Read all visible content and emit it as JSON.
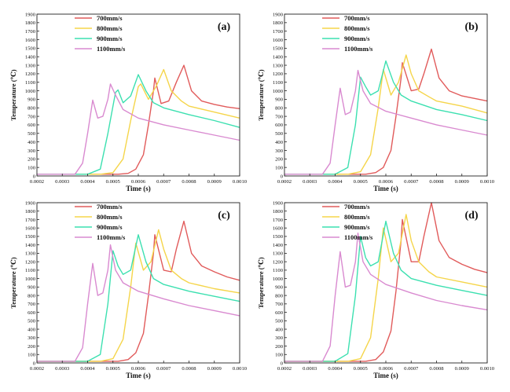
{
  "colors": {
    "700mm/s": "#e15b5b",
    "800mm/s": "#f5d54a",
    "900mm/s": "#3ce0b0",
    "1100mm/s": "#d98ad0",
    "axis": "#222222"
  },
  "chart_data": [
    {
      "type": "line",
      "panel_label": "(a)",
      "xlabel": "Time (s)",
      "ylabel": "Temperature (℃)",
      "xlim": [
        0.0002,
        0.001
      ],
      "ylim": [
        0,
        1900
      ],
      "x_ticks": [
        "0.0002",
        "0.0003",
        "0.0004",
        "0.0005",
        "0.0006",
        "0.0007",
        "0.0008",
        "0.0009",
        "0.0010"
      ],
      "y_ticks": [
        "0",
        "100",
        "200",
        "300",
        "400",
        "500",
        "600",
        "700",
        "800",
        "900",
        "1000",
        "1100",
        "1200",
        "1300",
        "1400",
        "1500",
        "1600",
        "1700",
        "1800",
        "1900"
      ],
      "legend_position": "top-center",
      "series": [
        {
          "name": "700mm/s",
          "x": [
            0.0002,
            0.00052,
            0.00056,
            0.00059,
            0.00062,
            0.00064,
            0.00066,
            0.000665,
            0.00069,
            0.00072,
            0.00075,
            0.00078,
            0.00081,
            0.00085,
            0.0009,
            0.00095,
            0.001
          ],
          "y": [
            20,
            20,
            30,
            80,
            250,
            600,
            1000,
            1150,
            850,
            880,
            1100,
            1300,
            1000,
            880,
            840,
            810,
            790
          ]
        },
        {
          "name": "800mm/s",
          "x": [
            0.0002,
            0.00045,
            0.0005,
            0.00054,
            0.00057,
            0.0006,
            0.00061,
            0.00064,
            0.00067,
            0.0007,
            0.00073,
            0.00077,
            0.0008,
            0.0009,
            0.001
          ],
          "y": [
            20,
            20,
            40,
            200,
            650,
            1050,
            1080,
            900,
            1050,
            1250,
            1000,
            880,
            820,
            750,
            680
          ]
        },
        {
          "name": "900mm/s",
          "x": [
            0.0002,
            0.0004,
            0.00045,
            0.00048,
            0.00051,
            0.00052,
            0.00054,
            0.00057,
            0.0006,
            0.00063,
            0.00066,
            0.0007,
            0.0008,
            0.0009,
            0.001
          ],
          "y": [
            20,
            20,
            80,
            500,
            980,
            1010,
            860,
            940,
            1190,
            1000,
            860,
            800,
            720,
            650,
            570
          ]
        },
        {
          "name": "1100mm/s",
          "x": [
            0.0002,
            0.00035,
            0.00038,
            0.0004,
            0.00042,
            0.00044,
            0.00046,
            0.00048,
            0.00049,
            0.00051,
            0.00054,
            0.0006,
            0.0007,
            0.0008,
            0.0009,
            0.001
          ],
          "y": [
            20,
            20,
            150,
            500,
            890,
            680,
            700,
            900,
            1080,
            950,
            780,
            680,
            600,
            540,
            480,
            420
          ]
        }
      ]
    },
    {
      "type": "line",
      "panel_label": "(b)",
      "xlabel": "Time (s)",
      "ylabel": "Temperature (℃)",
      "xlim": [
        0.0002,
        0.001
      ],
      "ylim": [
        0,
        1900
      ],
      "x_ticks": [
        "0.0002",
        "0.0003",
        "0.0004",
        "0.0005",
        "0.0006",
        "0.0007",
        "0.0008",
        "0.0009",
        "0.0010"
      ],
      "y_ticks": [
        "0",
        "100",
        "200",
        "300",
        "400",
        "500",
        "600",
        "700",
        "800",
        "900",
        "1000",
        "1100",
        "1200",
        "1300",
        "1400",
        "1500",
        "1600",
        "1700",
        "1800",
        "1900"
      ],
      "legend_position": "top-center",
      "series": [
        {
          "name": "700mm/s",
          "x": [
            0.0002,
            0.00052,
            0.00056,
            0.00059,
            0.00062,
            0.00064,
            0.00066,
            0.000665,
            0.0007,
            0.00073,
            0.00075,
            0.00078,
            0.00081,
            0.00085,
            0.0009,
            0.00095,
            0.001
          ],
          "y": [
            20,
            20,
            40,
            100,
            300,
            700,
            1150,
            1330,
            1000,
            1020,
            1200,
            1490,
            1150,
            1000,
            940,
            910,
            880
          ]
        },
        {
          "name": "800mm/s",
          "x": [
            0.0002,
            0.00045,
            0.0005,
            0.00054,
            0.00057,
            0.00059,
            0.00062,
            0.00065,
            0.00068,
            0.0007,
            0.00073,
            0.00077,
            0.0008,
            0.0009,
            0.001
          ],
          "y": [
            20,
            20,
            50,
            250,
            800,
            1250,
            950,
            1100,
            1420,
            1200,
            1000,
            930,
            880,
            820,
            740
          ]
        },
        {
          "name": "900mm/s",
          "x": [
            0.0002,
            0.0004,
            0.00045,
            0.00048,
            0.0005,
            0.00052,
            0.00054,
            0.00057,
            0.0006,
            0.00063,
            0.00066,
            0.0007,
            0.0008,
            0.0009,
            0.001
          ],
          "y": [
            20,
            20,
            100,
            600,
            1160,
            1050,
            950,
            1000,
            1350,
            1100,
            950,
            880,
            780,
            720,
            650
          ]
        },
        {
          "name": "1100mm/s",
          "x": [
            0.0002,
            0.00035,
            0.00038,
            0.0004,
            0.00042,
            0.00044,
            0.00046,
            0.00048,
            0.00049,
            0.00051,
            0.00054,
            0.0006,
            0.0007,
            0.0008,
            0.0009,
            0.001
          ],
          "y": [
            20,
            20,
            150,
            600,
            1030,
            720,
            750,
            1000,
            1240,
            1000,
            850,
            760,
            680,
            600,
            540,
            480
          ]
        }
      ]
    },
    {
      "type": "line",
      "panel_label": "(c)",
      "xlabel": "Time (s)",
      "ylabel": "Temperature (℃)",
      "xlim": [
        0.0002,
        0.001
      ],
      "ylim": [
        0,
        1900
      ],
      "x_ticks": [
        "0.0002",
        "0.0003",
        "0.0004",
        "0.0005",
        "0.0006",
        "0.0007",
        "0.0008",
        "0.0009",
        "0.0010"
      ],
      "y_ticks": [
        "0",
        "100",
        "200",
        "300",
        "400",
        "500",
        "600",
        "700",
        "800",
        "900",
        "1000",
        "1100",
        "1200",
        "1300",
        "1400",
        "1500",
        "1600",
        "1700",
        "1800",
        "1900"
      ],
      "legend_position": "top-center",
      "series": [
        {
          "name": "700mm/s",
          "x": [
            0.0002,
            0.00052,
            0.00056,
            0.00059,
            0.00062,
            0.00064,
            0.00066,
            0.000665,
            0.0007,
            0.00073,
            0.00075,
            0.00078,
            0.00081,
            0.00085,
            0.0009,
            0.00095,
            0.001
          ],
          "y": [
            20,
            20,
            40,
            120,
            350,
            800,
            1300,
            1520,
            1100,
            1080,
            1350,
            1680,
            1300,
            1150,
            1080,
            1020,
            980
          ]
        },
        {
          "name": "800mm/s",
          "x": [
            0.0002,
            0.00045,
            0.0005,
            0.00054,
            0.00057,
            0.00059,
            0.00062,
            0.00065,
            0.00068,
            0.0007,
            0.00073,
            0.00077,
            0.0008,
            0.0009,
            0.001
          ],
          "y": [
            20,
            20,
            50,
            280,
            900,
            1420,
            1100,
            1200,
            1580,
            1350,
            1100,
            1000,
            950,
            880,
            830
          ]
        },
        {
          "name": "900mm/s",
          "x": [
            0.0002,
            0.0004,
            0.00045,
            0.00048,
            0.0005,
            0.00052,
            0.00054,
            0.00057,
            0.0006,
            0.00063,
            0.00066,
            0.0007,
            0.0008,
            0.0009,
            0.001
          ],
          "y": [
            20,
            20,
            100,
            700,
            1330,
            1150,
            1050,
            1100,
            1520,
            1200,
            1000,
            930,
            850,
            790,
            730
          ]
        },
        {
          "name": "1100mm/s",
          "x": [
            0.0002,
            0.00035,
            0.00038,
            0.0004,
            0.00042,
            0.00044,
            0.00046,
            0.00048,
            0.00049,
            0.00051,
            0.00054,
            0.0006,
            0.0007,
            0.0008,
            0.0009,
            0.001
          ],
          "y": [
            20,
            20,
            180,
            700,
            1180,
            800,
            830,
            1100,
            1400,
            1100,
            950,
            850,
            760,
            680,
            620,
            560
          ]
        }
      ]
    },
    {
      "type": "line",
      "panel_label": "(d)",
      "xlabel": "Time (s)",
      "ylabel": "Temperature (℃)",
      "xlim": [
        0.0002,
        0.001
      ],
      "ylim": [
        0,
        1900
      ],
      "x_ticks": [
        "0.0002",
        "0.0003",
        "0.0004",
        "0.0005",
        "0.0006",
        "0.0007",
        "0.0008",
        "0.0009",
        "0.0010"
      ],
      "y_ticks": [
        "0",
        "100",
        "200",
        "300",
        "400",
        "500",
        "600",
        "700",
        "800",
        "900",
        "1000",
        "1100",
        "1200",
        "1300",
        "1400",
        "1500",
        "1600",
        "1700",
        "1800",
        "1900"
      ],
      "legend_position": "top-center",
      "series": [
        {
          "name": "700mm/s",
          "x": [
            0.0002,
            0.00052,
            0.00056,
            0.00059,
            0.00062,
            0.00064,
            0.00066,
            0.000665,
            0.0007,
            0.00073,
            0.00075,
            0.00078,
            0.00081,
            0.00085,
            0.0009,
            0.00095,
            0.001
          ],
          "y": [
            20,
            20,
            40,
            130,
            380,
            850,
            1450,
            1700,
            1200,
            1200,
            1500,
            1900,
            1450,
            1250,
            1170,
            1110,
            1070
          ]
        },
        {
          "name": "800mm/s",
          "x": [
            0.0002,
            0.00045,
            0.0005,
            0.00054,
            0.00057,
            0.00059,
            0.00062,
            0.00065,
            0.00068,
            0.0007,
            0.00073,
            0.00077,
            0.0008,
            0.0009,
            0.001
          ],
          "y": [
            20,
            20,
            50,
            300,
            1000,
            1600,
            1200,
            1300,
            1760,
            1450,
            1200,
            1080,
            1020,
            960,
            900
          ]
        },
        {
          "name": "900mm/s",
          "x": [
            0.0002,
            0.0004,
            0.00045,
            0.00048,
            0.0005,
            0.00052,
            0.00054,
            0.00057,
            0.0006,
            0.00063,
            0.00066,
            0.0007,
            0.0008,
            0.0009,
            0.001
          ],
          "y": [
            20,
            20,
            110,
            800,
            1500,
            1250,
            1150,
            1200,
            1680,
            1300,
            1100,
            1000,
            920,
            860,
            800
          ]
        },
        {
          "name": "1100mm/s",
          "x": [
            0.0002,
            0.00035,
            0.00038,
            0.0004,
            0.00042,
            0.00044,
            0.00046,
            0.00048,
            0.00049,
            0.00051,
            0.00054,
            0.0006,
            0.0007,
            0.0008,
            0.0009,
            0.001
          ],
          "y": [
            20,
            20,
            200,
            800,
            1320,
            900,
            920,
            1200,
            1540,
            1200,
            1050,
            930,
            830,
            740,
            680,
            630
          ]
        }
      ]
    }
  ]
}
